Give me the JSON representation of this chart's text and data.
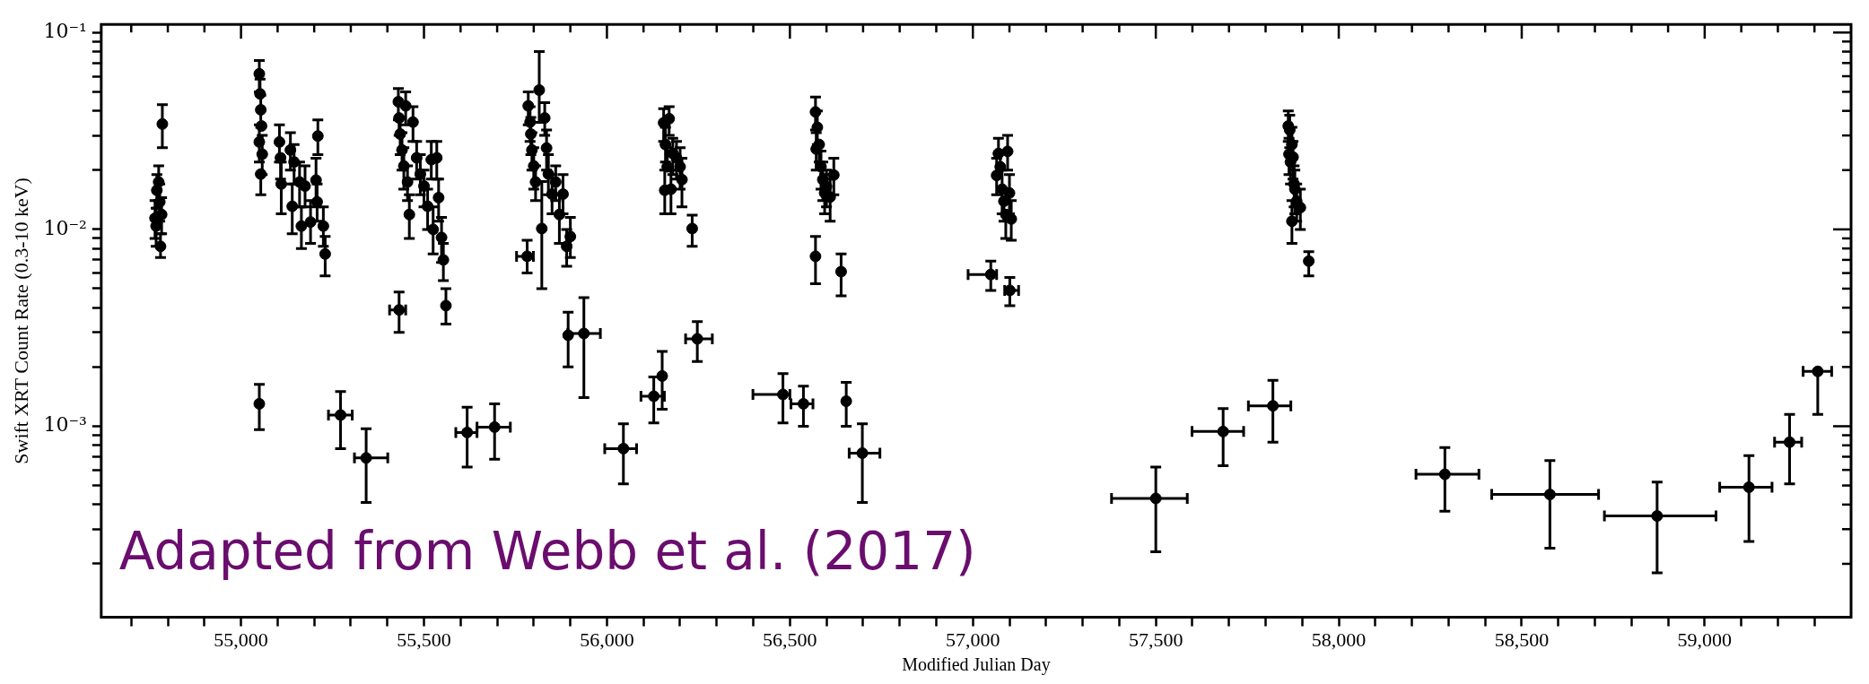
{
  "chart_data": {
    "type": "scatter",
    "xlabel": "Modified Julian Day",
    "ylabel": "Swift XRT Count Rate (0.3-10 keV)",
    "annotations": [
      "Adapted from Webb et al. (2017)"
    ],
    "color": "#000000",
    "marker": "circle",
    "log": "y",
    "grid": false,
    "legend": false,
    "xlim": [
      54618,
      59400
    ],
    "ylim": [
      0.000107,
      0.11
    ],
    "xticks": [
      {
        "value": 54700,
        "label": null
      },
      {
        "value": 54800,
        "label": null
      },
      {
        "value": 54900,
        "label": null
      },
      {
        "value": 55000,
        "label": "55,000"
      },
      {
        "value": 55100,
        "label": null
      },
      {
        "value": 55200,
        "label": null
      },
      {
        "value": 55300,
        "label": null
      },
      {
        "value": 55400,
        "label": null
      },
      {
        "value": 55500,
        "label": "55,500"
      },
      {
        "value": 55600,
        "label": null
      },
      {
        "value": 55700,
        "label": null
      },
      {
        "value": 55800,
        "label": null
      },
      {
        "value": 55900,
        "label": null
      },
      {
        "value": 56000,
        "label": "56,000"
      },
      {
        "value": 56100,
        "label": null
      },
      {
        "value": 56200,
        "label": null
      },
      {
        "value": 56300,
        "label": null
      },
      {
        "value": 56400,
        "label": null
      },
      {
        "value": 56500,
        "label": "56,500"
      },
      {
        "value": 56600,
        "label": null
      },
      {
        "value": 56700,
        "label": null
      },
      {
        "value": 56800,
        "label": null
      },
      {
        "value": 56900,
        "label": null
      },
      {
        "value": 57000,
        "label": "57,000"
      },
      {
        "value": 57100,
        "label": null
      },
      {
        "value": 57200,
        "label": null
      },
      {
        "value": 57300,
        "label": null
      },
      {
        "value": 57400,
        "label": null
      },
      {
        "value": 57500,
        "label": "57,500"
      },
      {
        "value": 57600,
        "label": null
      },
      {
        "value": 57700,
        "label": null
      },
      {
        "value": 57800,
        "label": null
      },
      {
        "value": 57900,
        "label": null
      },
      {
        "value": 58000,
        "label": "58,000"
      },
      {
        "value": 58100,
        "label": null
      },
      {
        "value": 58200,
        "label": null
      },
      {
        "value": 58300,
        "label": null
      },
      {
        "value": 58400,
        "label": null
      },
      {
        "value": 58500,
        "label": "58,500"
      },
      {
        "value": 58600,
        "label": null
      },
      {
        "value": 58700,
        "label": null
      },
      {
        "value": 58800,
        "label": null
      },
      {
        "value": 58900,
        "label": null
      },
      {
        "value": 59000,
        "label": "59,000"
      },
      {
        "value": 59100,
        "label": null
      },
      {
        "value": 59200,
        "label": null
      },
      {
        "value": 59300,
        "label": null
      }
    ],
    "yticks": [
      {
        "value": 0.0002,
        "label": null
      },
      {
        "value": 0.0003,
        "label": null
      },
      {
        "value": 0.0004,
        "label": null
      },
      {
        "value": 0.0005,
        "label": null
      },
      {
        "value": 0.0006,
        "label": null
      },
      {
        "value": 0.0007,
        "label": null
      },
      {
        "value": 0.0008,
        "label": null
      },
      {
        "value": 0.0009,
        "label": null
      },
      {
        "value": 0.001,
        "label": "10⁻³"
      },
      {
        "value": 0.002,
        "label": null
      },
      {
        "value": 0.003,
        "label": null
      },
      {
        "value": 0.004,
        "label": null
      },
      {
        "value": 0.005,
        "label": null
      },
      {
        "value": 0.006,
        "label": null
      },
      {
        "value": 0.007,
        "label": null
      },
      {
        "value": 0.008,
        "label": null
      },
      {
        "value": 0.009,
        "label": null
      },
      {
        "value": 0.01,
        "label": "10⁻²"
      },
      {
        "value": 0.02,
        "label": null
      },
      {
        "value": 0.03,
        "label": null
      },
      {
        "value": 0.04,
        "label": null
      },
      {
        "value": 0.05,
        "label": null
      },
      {
        "value": 0.06,
        "label": null
      },
      {
        "value": 0.07,
        "label": null
      },
      {
        "value": 0.08,
        "label": null
      },
      {
        "value": 0.09,
        "label": null
      },
      {
        "value": 0.1,
        "label": "10⁻¹"
      }
    ],
    "x": [
      54765,
      54768,
      54770,
      54775,
      54778,
      54780,
      54783,
      54785,
      55050,
      55052,
      55054,
      55056,
      55050,
      55058,
      55054,
      55105,
      55108,
      55110,
      55135,
      55140,
      55145,
      55160,
      55165,
      55175,
      55190,
      55210,
      55205,
      55208,
      55225,
      55230,
      55050,
      55272,
      55342,
      55430,
      55432,
      55435,
      55440,
      55445,
      55450,
      55455,
      55460,
      55470,
      55480,
      55490,
      55500,
      55510,
      55520,
      55525,
      55535,
      55540,
      55548,
      55553,
      55432,
      55560,
      55618,
      55693,
      55785,
      55790,
      55792,
      55795,
      55800,
      55805,
      55815,
      55822,
      55830,
      55835,
      55840,
      55850,
      55860,
      55870,
      55880,
      55890,
      55900,
      55782,
      55894,
      55937,
      56045,
      56128,
      56151,
      56247,
      56155,
      56160,
      56158,
      56165,
      56170,
      56175,
      56180,
      56190,
      56200,
      56205,
      56233,
      56570,
      56575,
      56572,
      56580,
      56585,
      56590,
      56595,
      56600,
      56610,
      56620,
      56570,
      56640,
      56481,
      56537,
      56654,
      56698,
      57065,
      57070,
      57075,
      57080,
      57085,
      57090,
      57095,
      57100,
      57105,
      57049,
      57101,
      57500,
      57684,
      57820,
      57862,
      57866,
      57864,
      57868,
      57872,
      57875,
      57878,
      57880,
      57885,
      57872,
      57895,
      57918,
      58290,
      58577,
      58870,
      59121,
      59232,
      59309
    ],
    "values": [
      0.0114,
      0.0104,
      0.0158,
      0.0174,
      0.0138,
      0.0082,
      0.0119,
      0.0343,
      0.0617,
      0.0488,
      0.0405,
      0.0335,
      0.0278,
      0.0241,
      0.0191,
      0.0278,
      0.0231,
      0.017,
      0.0253,
      0.0131,
      0.022,
      0.0174,
      0.0104,
      0.0166,
      0.0109,
      0.0298,
      0.0178,
      0.0138,
      0.0104,
      0.0075,
      0.0013,
      0.00114,
      0.00069,
      0.0445,
      0.0368,
      0.0305,
      0.0253,
      0.021,
      0.0424,
      0.0174,
      0.0119,
      0.0351,
      0.0231,
      0.0191,
      0.0166,
      0.0131,
      0.0226,
      0.01,
      0.0231,
      0.0145,
      0.0091,
      0.007,
      0.0039,
      0.0041,
      0.00093,
      0.00099,
      0.0424,
      0.0351,
      0.0305,
      0.0253,
      0.021,
      0.0174,
      0.051,
      0.0101,
      0.0368,
      0.0259,
      0.0191,
      0.0151,
      0.0174,
      0.0119,
      0.0151,
      0.0082,
      0.0092,
      0.0073,
      0.0029,
      0.00296,
      0.00077,
      0.00142,
      0.0018,
      0.00278,
      0.0348,
      0.027,
      0.0158,
      0.0208,
      0.0365,
      0.016,
      0.0243,
      0.0231,
      0.0208,
      0.0179,
      0.0101,
      0.0395,
      0.033,
      0.0256,
      0.027,
      0.0208,
      0.0179,
      0.0153,
      0.0165,
      0.0146,
      0.0189,
      0.0073,
      0.0061,
      0.00145,
      0.0013,
      0.00134,
      0.00073,
      0.0188,
      0.0243,
      0.0208,
      0.016,
      0.0139,
      0.0119,
      0.0249,
      0.0153,
      0.0113,
      0.0059,
      0.0049,
      0.00043,
      0.00094,
      0.00127,
      0.0335,
      0.032,
      0.0241,
      0.022,
      0.027,
      0.0233,
      0.017,
      0.016,
      0.0139,
      0.011,
      0.0129,
      0.0069,
      0.00057,
      0.00045,
      0.00035,
      0.00049,
      0.00083,
      0.0019
    ],
    "errors": [
      [
        0.009,
        0.014
      ],
      [
        0.0082,
        0.0128
      ],
      [
        0.0128,
        0.019
      ],
      [
        0.014,
        0.021
      ],
      [
        0.011,
        0.017
      ],
      [
        0.0072,
        0.0095
      ],
      [
        0.0095,
        0.0145
      ],
      [
        0.026,
        0.043
      ],
      [
        0.05,
        0.072
      ],
      [
        0.0488,
        0.058
      ],
      [
        0.033,
        0.048
      ],
      null,
      [
        0.022,
        0.034
      ],
      [
        0.019,
        0.03
      ],
      [
        0.015,
        0.0191
      ],
      [
        0.022,
        0.034
      ],
      [
        0.018,
        0.0231
      ],
      [
        0.012,
        0.022
      ],
      [
        0.02,
        0.031
      ],
      [
        0.0095,
        0.017
      ],
      [
        0.017,
        0.027
      ],
      [
        0.013,
        0.022
      ],
      [
        0.008,
        0.013
      ],
      [
        0.013,
        0.021
      ],
      [
        0.0085,
        0.014
      ],
      [
        0.024,
        0.036
      ],
      [
        0.013,
        0.023
      ],
      [
        0.011,
        0.017
      ],
      [
        0.0082,
        0.013
      ],
      [
        0.0058,
        0.0092
      ],
      [
        0.00096,
        0.00163
      ],
      [
        0.00077,
        0.0015
      ],
      [
        0.00041,
        0.00097
      ],
      [
        0.036,
        0.052
      ],
      [
        0.03,
        0.0368
      ],
      [
        0.024,
        0.037
      ],
      [
        0.02,
        0.031
      ],
      [
        0.016,
        0.026
      ],
      [
        0.034,
        0.05
      ],
      [
        0.014,
        0.021
      ],
      [
        0.009,
        0.015
      ],
      [
        0.028,
        0.042
      ],
      [
        0.018,
        0.028
      ],
      [
        0.015,
        0.024
      ],
      [
        0.013,
        0.02
      ],
      [
        0.01,
        0.016
      ],
      [
        0.018,
        0.028
      ],
      [
        0.0075,
        0.013
      ],
      [
        0.018,
        0.028
      ],
      [
        0.011,
        0.018
      ],
      [
        0.0068,
        0.0115
      ],
      [
        0.0055,
        0.0085
      ],
      [
        0.003,
        0.0048
      ],
      [
        0.0033,
        0.005
      ],
      [
        0.00062,
        0.00125
      ],
      [
        0.00068,
        0.0013
      ],
      [
        0.034,
        0.05
      ],
      [
        0.028,
        0.042
      ],
      [
        0.024,
        0.037
      ],
      [
        0.02,
        0.031
      ],
      [
        0.016,
        0.026
      ],
      [
        0.014,
        0.021
      ],
      [
        0.035,
        0.08
      ],
      [
        0.005,
        0.0175
      ],
      [
        0.03,
        0.044
      ],
      [
        0.02,
        0.032
      ],
      [
        0.015,
        0.024
      ],
      [
        0.012,
        0.019
      ],
      [
        0.014,
        0.021
      ],
      [
        0.0085,
        0.015
      ],
      [
        0.012,
        0.019
      ],
      [
        0.0065,
        0.01
      ],
      [
        0.0072,
        0.0115
      ],
      [
        0.006,
        0.0088
      ],
      [
        0.002,
        0.0038
      ],
      [
        0.0014,
        0.0045
      ],
      [
        0.00051,
        0.00103
      ],
      [
        0.00104,
        0.00178
      ],
      [
        0.00122,
        0.0024
      ],
      [
        0.00213,
        0.0034
      ],
      [
        0.028,
        0.041
      ],
      [
        0.022,
        0.033
      ],
      [
        0.012,
        0.02
      ],
      [
        0.0208,
        0.026
      ],
      [
        0.03,
        0.042
      ],
      [
        0.012,
        0.02
      ],
      [
        0.019,
        0.029
      ],
      [
        0.018,
        0.028
      ],
      [
        0.016,
        0.026
      ],
      [
        0.013,
        0.023
      ],
      [
        0.0082,
        0.0118
      ],
      [
        0.032,
        0.047
      ],
      [
        0.027,
        0.04
      ],
      [
        0.02,
        0.031
      ],
      [
        0.022,
        0.027
      ],
      [
        0.016,
        0.025
      ],
      [
        0.014,
        0.022
      ],
      [
        0.012,
        0.019
      ],
      [
        0.013,
        0.02
      ],
      [
        0.011,
        0.018
      ],
      [
        0.015,
        0.023
      ],
      [
        0.0053,
        0.0092
      ],
      [
        0.0046,
        0.0075
      ],
      [
        0.00104,
        0.00185
      ],
      [
        0.001,
        0.0016
      ],
      [
        0.001,
        0.00167
      ],
      [
        0.00041,
        0.00103
      ],
      [
        0.015,
        0.023
      ],
      [
        0.0243,
        0.029
      ],
      [
        0.0208,
        0.025
      ],
      [
        0.012,
        0.02
      ],
      [
        0.011,
        0.0139
      ],
      [
        0.009,
        0.0119
      ],
      [
        0.02,
        0.03
      ],
      [
        0.012,
        0.019
      ],
      [
        0.0088,
        0.014
      ],
      [
        0.0049,
        0.0069
      ],
      [
        0.0041,
        0.0057
      ],
      [
        0.00023,
        0.00062
      ],
      [
        0.00063,
        0.00123
      ],
      [
        0.00083,
        0.00171
      ],
      [
        0.028,
        0.04
      ],
      [
        0.026,
        0.038
      ],
      [
        0.019,
        0.029
      ],
      [
        0.017,
        0.022
      ],
      [
        0.027,
        0.033
      ],
      [
        0.018,
        0.028
      ],
      [
        0.013,
        0.021
      ],
      [
        0.012,
        0.02
      ],
      [
        0.011,
        0.017
      ],
      [
        0.0085,
        0.014
      ],
      [
        0.01,
        0.016
      ],
      [
        0.0058,
        0.0077
      ],
      [
        0.00037,
        0.00078
      ],
      [
        0.00024,
        0.00067
      ],
      [
        0.00018,
        0.00052
      ],
      [
        0.00026,
        0.00071
      ],
      [
        0.00051,
        0.00115
      ],
      [
        0.00115,
        0.0019
      ]
    ],
    "xerrors": [
      null,
      null,
      null,
      null,
      null,
      null,
      null,
      null,
      null,
      null,
      null,
      null,
      null,
      null,
      null,
      null,
      null,
      null,
      null,
      null,
      null,
      null,
      null,
      null,
      null,
      null,
      null,
      null,
      null,
      null,
      null,
      [
        55239,
        55304
      ],
      [
        55310,
        55401
      ],
      null,
      null,
      null,
      null,
      null,
      null,
      null,
      null,
      null,
      null,
      null,
      null,
      null,
      null,
      null,
      null,
      null,
      null,
      null,
      [
        55406,
        55450
      ],
      null,
      [
        55587,
        55645
      ],
      [
        55645,
        55736
      ],
      null,
      null,
      null,
      null,
      null,
      null,
      null,
      null,
      null,
      null,
      null,
      null,
      null,
      null,
      null,
      null,
      null,
      [
        55753,
        55799
      ],
      null,
      [
        55893,
        55982
      ],
      [
        55994,
        56081
      ],
      [
        56093,
        56157
      ],
      null,
      [
        56215,
        56288
      ],
      null,
      null,
      null,
      null,
      null,
      null,
      null,
      null,
      null,
      null,
      null,
      null,
      null,
      null,
      null,
      null,
      null,
      null,
      null,
      null,
      null,
      null,
      null,
      [
        56399,
        56500
      ],
      [
        56503,
        56563
      ],
      null,
      [
        56662,
        56746
      ],
      null,
      null,
      null,
      null,
      null,
      null,
      null,
      null,
      null,
      [
        56987,
        57065
      ],
      [
        57087,
        57125
      ],
      [
        57379,
        57586
      ],
      [
        57599,
        57740
      ],
      [
        57753,
        57869
      ],
      null,
      null,
      null,
      null,
      null,
      null,
      null,
      null,
      null,
      null,
      null,
      null,
      [
        58211,
        58383
      ],
      [
        58418,
        58710
      ],
      [
        58726,
        59031
      ],
      [
        59041,
        59184
      ],
      [
        59191,
        59265
      ],
      [
        59269,
        59347
      ]
    ]
  }
}
